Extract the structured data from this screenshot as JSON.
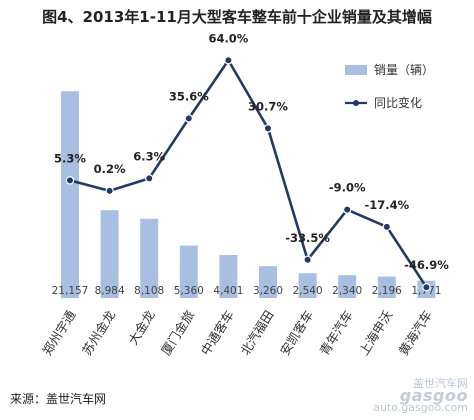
{
  "title": "图4、2013年1-11月大型客车整车前十企业销量及其增幅",
  "source": "来源：盖世汽车网",
  "watermark": {
    "brand_cn": "盖世汽车网",
    "logo": "gasgoo",
    "url": "auto.gasgoo.com"
  },
  "colors": {
    "bar": "#a9bfe2",
    "line": "#1f3a66"
  },
  "chart_data": {
    "type": "bar+line",
    "categories": [
      "郑州宇通",
      "苏州金龙",
      "大金龙",
      "厦门金旅",
      "中通客车",
      "北汽福田",
      "安凯客车",
      "青年汽车",
      "上海申沃",
      "黄海汽车"
    ],
    "series": [
      {
        "name": "销量（辆）",
        "type": "bar",
        "values": [
          21157,
          8984,
          8108,
          5360,
          4401,
          3260,
          2540,
          2340,
          2196,
          1771
        ],
        "labels": [
          "21,157",
          "8,984",
          "8,108",
          "5,360",
          "4,401",
          "3,260",
          "2,540",
          "2,340",
          "2,196",
          "1,771"
        ]
      },
      {
        "name": "同比变化",
        "type": "line",
        "values": [
          5.3,
          0.2,
          6.3,
          35.6,
          64.0,
          30.7,
          -33.5,
          -9.0,
          -17.4,
          -46.9
        ],
        "labels": [
          "5.3%",
          "0.2%",
          "6.3%",
          "35.6%",
          "64.0%",
          "30.7%",
          "-33.5%",
          "-9.0%",
          "-17.4%",
          "-46.9%"
        ]
      }
    ],
    "ylim_bar": [
      0,
      22000
    ],
    "ylim_line": [
      -60,
      70
    ],
    "grid": false,
    "legend_position": "right"
  }
}
